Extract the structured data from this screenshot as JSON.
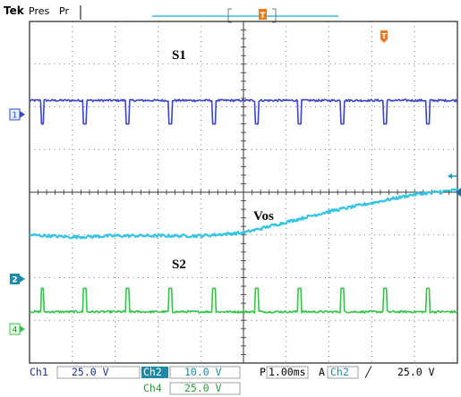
{
  "header": {
    "brand": "Tek",
    "mode": "Pres",
    "status": "Pr"
  },
  "trigger_marker": "T",
  "channel_markers": [
    "1",
    "2",
    "4"
  ],
  "labels": {
    "s1": "S1",
    "vos": "Vos",
    "s2": "S2"
  },
  "status_bar": {
    "ch1_name": "Ch1",
    "ch1_scale": "25.0 V",
    "ch2_name": "Ch2",
    "ch2_scale": "10.0 V",
    "ch4_name": "Ch4",
    "ch4_scale": "25.0 V",
    "timebase_prefix": "P",
    "timebase": "1.00ms",
    "trigger_prefix": "A",
    "trigger_source": "Ch2",
    "trigger_slope": "╱",
    "trigger_level": "25.0 V"
  },
  "colors": {
    "ch1": "#3b45c8",
    "ch2": "#33c3e3",
    "ch4": "#37c34a",
    "trigger": "#ec7a1c",
    "grid": "#555555",
    "marker_fill": "#dff0ff",
    "highlight": "#33c3e3"
  },
  "chart_data": {
    "type": "line",
    "x_divisions": 10,
    "y_divisions": 8,
    "x_unit": "div",
    "y_unit": "div",
    "series": [
      {
        "name": "S1",
        "color_key": "ch1",
        "baseline_div": 6.15,
        "pulse_depth_div": 0.55,
        "pulse_width_div": 0.08,
        "pulse_times_div": [
          0.3,
          1.3,
          2.3,
          3.3,
          4.3,
          5.3,
          6.3,
          7.3,
          8.3,
          9.3
        ]
      },
      {
        "name": "Vos",
        "color_key": "ch2",
        "x": [
          0,
          1,
          2,
          3,
          4,
          5,
          6,
          7,
          8,
          9,
          10
        ],
        "y": [
          3.0,
          2.95,
          2.98,
          2.98,
          2.98,
          3.05,
          3.3,
          3.55,
          3.75,
          3.95,
          4.05
        ]
      },
      {
        "name": "S2",
        "color_key": "ch4",
        "baseline_div": 1.2,
        "pulse_height_div": 0.55,
        "pulse_width_div": 0.08,
        "pulse_times_div": [
          0.3,
          1.3,
          2.3,
          3.3,
          4.3,
          5.3,
          6.3,
          7.3,
          8.3,
          9.3
        ]
      }
    ]
  }
}
